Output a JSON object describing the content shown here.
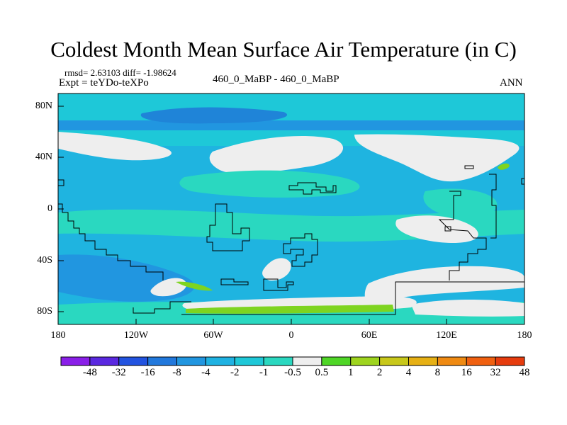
{
  "title": "Coldest Month Mean Surface Air Temperature (in C)",
  "stats": {
    "rmsd_diff": "rmsd= 2.63103 diff= -1.98624",
    "expt": "Expt = teYDo-teXPo"
  },
  "center_label": "460_0_MaBP - 460_0_MaBP",
  "season": "ANN",
  "lat_labels": [
    "80N",
    "40N",
    "0",
    "40S",
    "80S"
  ],
  "lon_labels": [
    "180",
    "120W",
    "60W",
    "0",
    "60E",
    "120E",
    "180"
  ],
  "colorbar": {
    "colors": [
      "#8a1fe8",
      "#5a28e0",
      "#2253e0",
      "#2178dc",
      "#2196e0",
      "#1fb2e2",
      "#1ec8d8",
      "#2ad8c0",
      "#eeeeee",
      "#4fd626",
      "#9ed41e",
      "#c8c81a",
      "#e6b014",
      "#ef8a12",
      "#f06010",
      "#e63c0e"
    ],
    "labels": [
      "-48",
      "-32",
      "-16",
      "-8",
      "-4",
      "-2",
      "-1",
      "-0.5",
      "0.5",
      "1",
      "2",
      "4",
      "8",
      "16",
      "32",
      "48"
    ]
  },
  "map_colors": {
    "base": "#1fb4e0",
    "deep_blue": "#1f84d8",
    "mid_blue": "#2196e0",
    "cyan": "#1ec8d8",
    "teal": "#2ad8c0",
    "white": "#eeeeee",
    "green": "#7ed420"
  }
}
